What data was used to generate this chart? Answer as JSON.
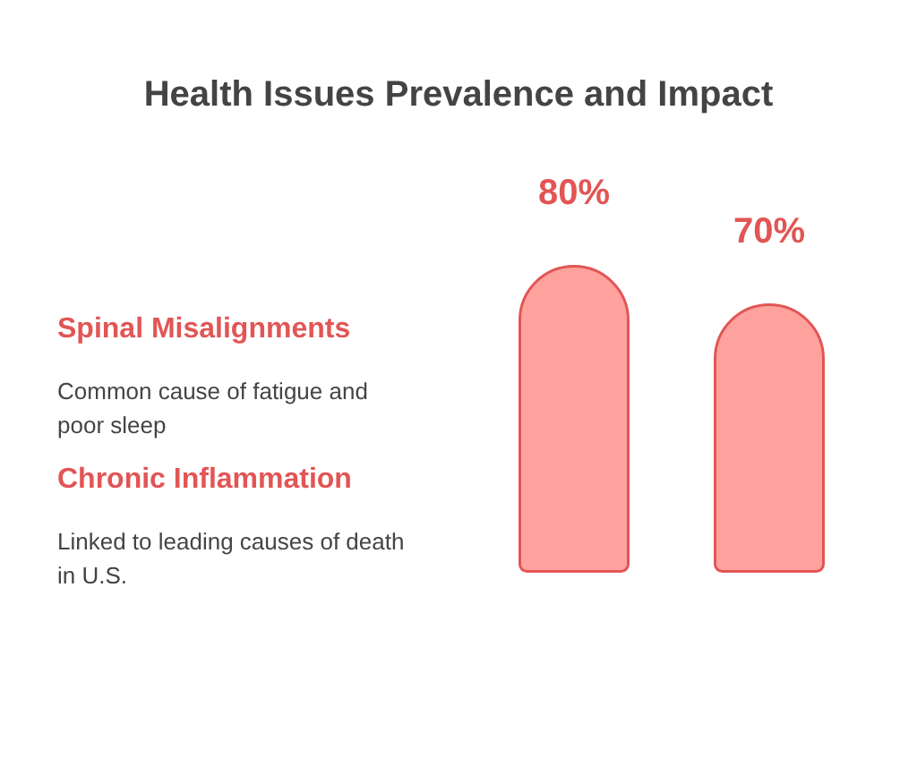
{
  "chart_data": {
    "type": "bar",
    "title": "Health Issues Prevalence and Impact",
    "categories": [
      null,
      null
    ],
    "values": [
      80,
      70
    ],
    "value_labels": [
      "80%",
      "70%"
    ],
    "color": "#ffa19c",
    "annotations": [
      "Spinal Misalignments",
      "Common cause of fatigue and poor sleep",
      "Chronic Inflammation",
      "Linked to leading causes of death in U.S."
    ]
  }
}
